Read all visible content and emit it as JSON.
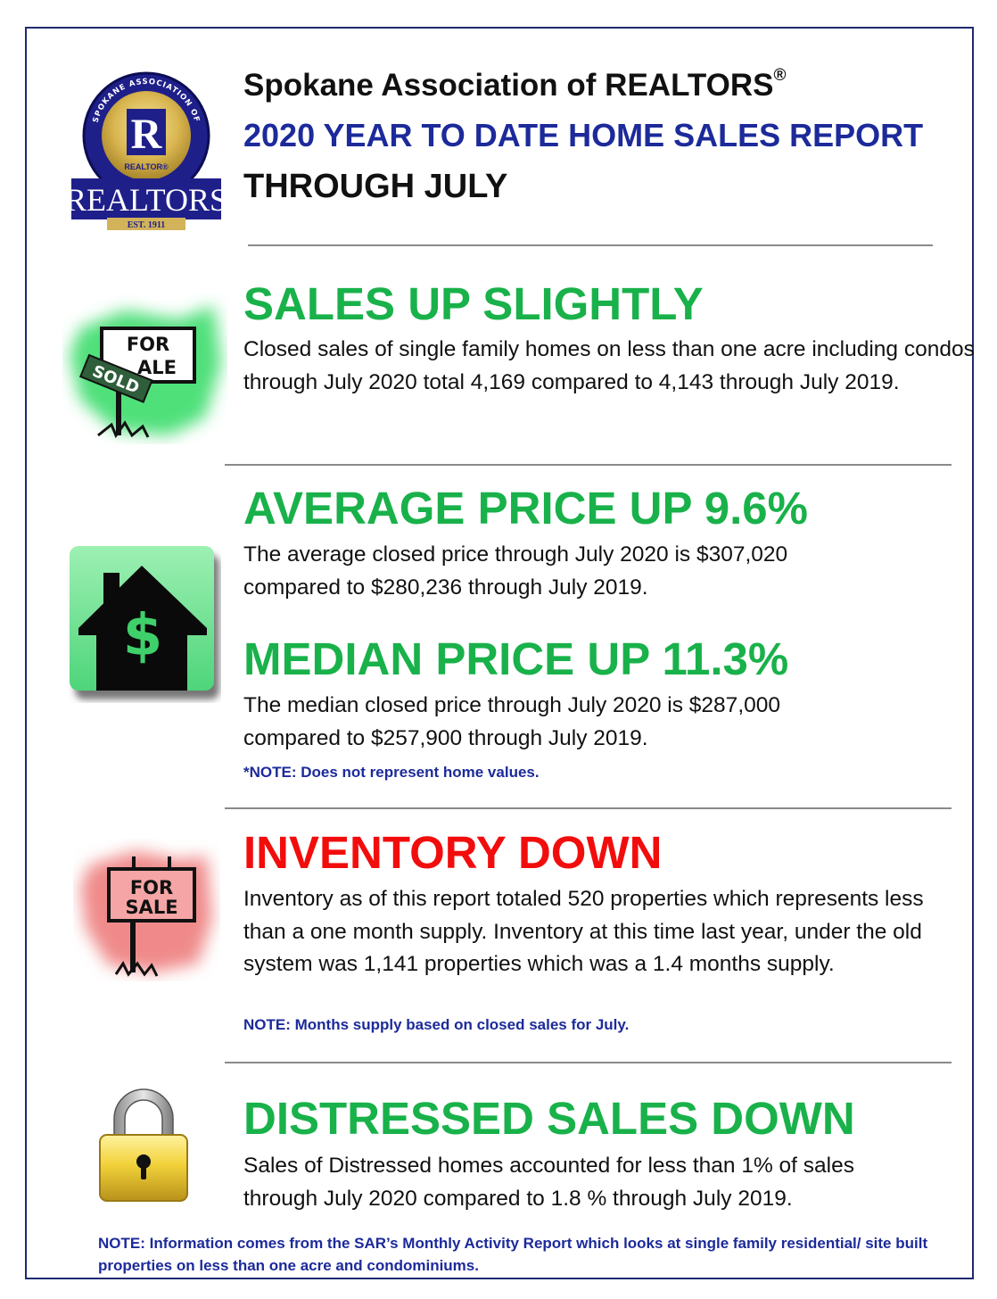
{
  "header": {
    "org_name": "Spokane Association of REALTORS",
    "org_mark": "®",
    "report_title": "2020 YEAR TO DATE HOME SALES REPORT",
    "report_period": "THROUGH JULY"
  },
  "logo": {
    "ring_text": "SPOKANE ASSOCIATION OF",
    "letter": "R",
    "small_label": "REALTOR®",
    "banner": "REALTORS",
    "est": "EST. 1911"
  },
  "sections": {
    "sales": {
      "heading": "SALES UP SLIGHTLY",
      "body": "Closed sales of single family homes on less than one acre including condos through July 2020 total 4,169 compared to 4,143 through July 2019.",
      "sign_top": "FOR",
      "sign_bottom": "ALE",
      "sold_tag": "SOLD"
    },
    "average": {
      "heading": "AVERAGE PRICE UP 9.6%",
      "body": "The average closed price through July 2020 is $307,020 compared to $280,236 through July 2019.",
      "icon_symbol": "$"
    },
    "median": {
      "heading": "MEDIAN PRICE UP 11.3%",
      "body": "The median closed price through July 2020 is $287,000 compared to $257,900 through July 2019.",
      "note": "*NOTE:  Does not represent home values."
    },
    "inventory": {
      "heading": "INVENTORY DOWN",
      "body": "Inventory as of this report totaled 520 properties which represents less than a one month supply.  Inventory at this time last year, under the old system was 1,141 properties which was a 1.4 months supply.",
      "note": "NOTE:  Months supply based on closed sales for July.",
      "sign_top": "FOR",
      "sign_bottom": "SALE"
    },
    "distressed": {
      "heading": "DISTRESSED SALES DOWN",
      "body": "Sales of Distressed homes accounted for less than 1% of sales through July 2020 compared to 1.8 % through July 2019."
    }
  },
  "footer_note": "NOTE:  Information comes from the SAR’s Monthly Activity Report which looks at single family residential/ site built properties on less than one acre and condominiums.",
  "colors": {
    "navy": "#1c2a9a",
    "green": "#19b14a",
    "red": "#f20d0d",
    "gold": "#c9a227"
  }
}
